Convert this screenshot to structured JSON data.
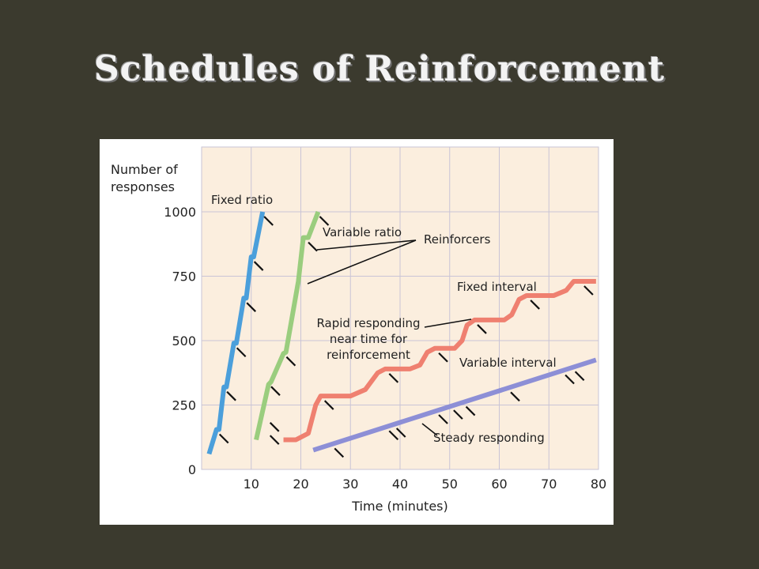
{
  "slide": {
    "title": "Schedules of Reinforcement"
  },
  "chart_data": {
    "type": "line",
    "xlabel": "Time (minutes)",
    "ylabel": "Number of responses",
    "ylabel_lines": [
      "Number of",
      "responses"
    ],
    "xlim": [
      0,
      80
    ],
    "ylim": [
      0,
      1000
    ],
    "x_ticks": [
      10,
      20,
      30,
      40,
      50,
      60,
      70,
      80
    ],
    "y_ticks": [
      0,
      250,
      500,
      750,
      1000
    ],
    "grid": true,
    "background_color": "#fbeede",
    "series": [
      {
        "name": "Fixed ratio",
        "color": "#4b9fdb",
        "points": [
          [
            1.5,
            60
          ],
          [
            3.0,
            155
          ],
          [
            3.5,
            155
          ],
          [
            4.5,
            320
          ],
          [
            5.0,
            320
          ],
          [
            6.5,
            490
          ],
          [
            7.0,
            490
          ],
          [
            8.5,
            665
          ],
          [
            9.0,
            665
          ],
          [
            10.0,
            825
          ],
          [
            10.5,
            825
          ],
          [
            12.3,
            1000
          ]
        ],
        "reinforcers": [
          [
            3.3,
            155
          ],
          [
            4.8,
            320
          ],
          [
            6.8,
            490
          ],
          [
            8.8,
            665
          ],
          [
            10.3,
            825
          ],
          [
            12.3,
            1000
          ]
        ]
      },
      {
        "name": "Variable ratio",
        "color": "#9acd7e",
        "points": [
          [
            11.0,
            115
          ],
          [
            13.5,
            330
          ],
          [
            14.0,
            340
          ],
          [
            16.5,
            450
          ],
          [
            17.0,
            455
          ],
          [
            19.5,
            730
          ],
          [
            20.5,
            900
          ],
          [
            21.5,
            900
          ],
          [
            23.5,
            1000
          ]
        ],
        "reinforcers": [
          [
            13.7,
            340
          ],
          [
            16.8,
            455
          ],
          [
            21.2,
            900
          ],
          [
            23.5,
            1000
          ],
          [
            13.5,
            200
          ],
          [
            13.5,
            150
          ]
        ]
      },
      {
        "name": "Fixed interval",
        "color": "#ef8070",
        "points": [
          [
            16.5,
            115
          ],
          [
            19.0,
            115
          ],
          [
            21.5,
            140
          ],
          [
            23.0,
            250
          ],
          [
            24.0,
            285
          ],
          [
            30.0,
            285
          ],
          [
            33.0,
            310
          ],
          [
            35.5,
            375
          ],
          [
            37.0,
            390
          ],
          [
            42.0,
            390
          ],
          [
            44.0,
            405
          ],
          [
            45.5,
            455
          ],
          [
            47.0,
            470
          ],
          [
            51.0,
            470
          ],
          [
            52.5,
            500
          ],
          [
            53.5,
            560
          ],
          [
            55.0,
            580
          ],
          [
            61.0,
            580
          ],
          [
            62.5,
            600
          ],
          [
            64.0,
            660
          ],
          [
            65.5,
            675
          ],
          [
            71.0,
            675
          ],
          [
            73.5,
            695
          ],
          [
            75.0,
            730
          ],
          [
            76.5,
            730
          ],
          [
            79.5,
            730
          ]
        ],
        "reinforcers": [
          [
            24.5,
            285
          ],
          [
            37.5,
            390
          ],
          [
            47.5,
            470
          ],
          [
            55.3,
            580
          ],
          [
            66.0,
            675
          ],
          [
            76.8,
            730
          ]
        ]
      },
      {
        "name": "Variable interval",
        "color": "#8d8fd6",
        "points": [
          [
            22.5,
            75
          ],
          [
            79.5,
            425
          ]
        ],
        "reinforcers": [
          [
            26.5,
            100
          ],
          [
            37.5,
            168
          ],
          [
            39.0,
            178
          ],
          [
            47.5,
            230
          ],
          [
            50.5,
            248
          ],
          [
            53.0,
            262
          ],
          [
            62.0,
            318
          ],
          [
            73.0,
            385
          ],
          [
            75.0,
            398
          ]
        ]
      }
    ],
    "annotations": [
      {
        "id": "fixed_ratio",
        "text": "Fixed ratio"
      },
      {
        "id": "variable_ratio",
        "text": "Variable ratio"
      },
      {
        "id": "reinforcers",
        "text": "Reinforcers"
      },
      {
        "id": "fixed_interval",
        "text": "Fixed interval"
      },
      {
        "id": "rapid_responding",
        "lines": [
          "Rapid responding",
          "near time for",
          "reinforcement"
        ]
      },
      {
        "id": "variable_interval",
        "text": "Variable interval"
      },
      {
        "id": "steady_responding",
        "text": "Steady responding"
      }
    ]
  }
}
